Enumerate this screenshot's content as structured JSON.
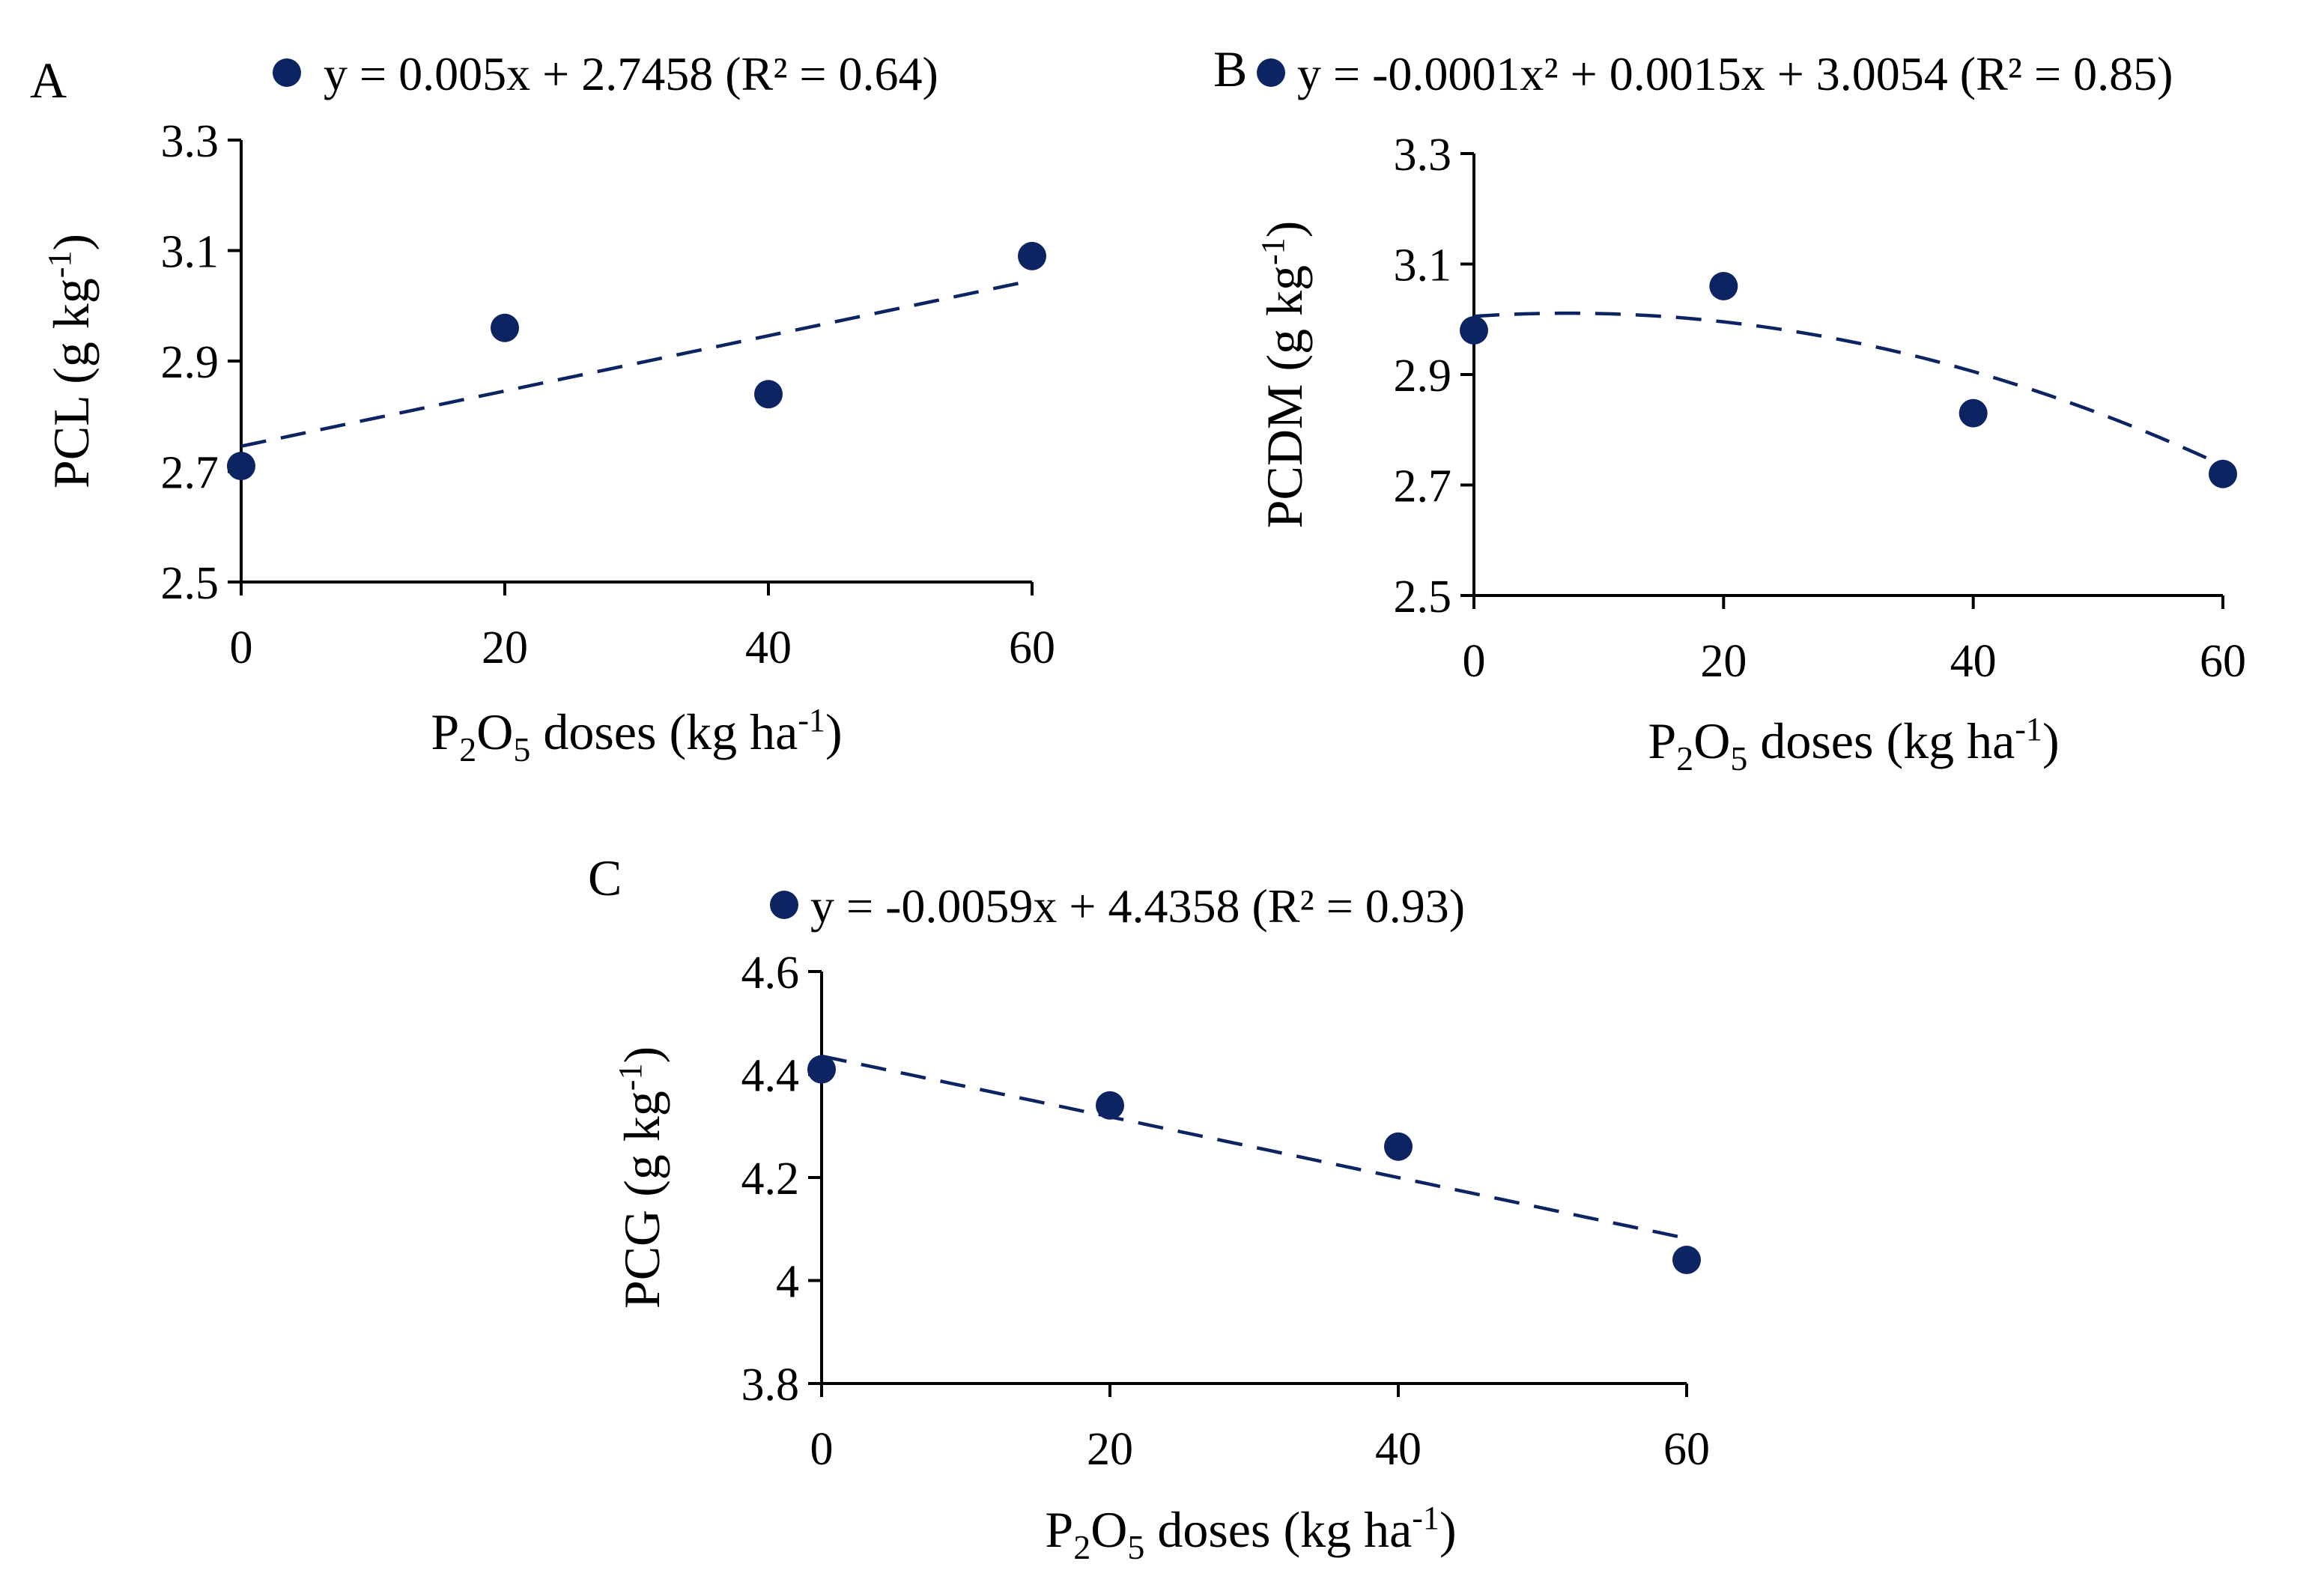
{
  "colors": {
    "marker": "#0d2462",
    "axis": "#000000",
    "background": "#ffffff"
  },
  "chart_data": [
    {
      "type": "scatter",
      "panel": "A",
      "legend": "y = 0.005x + 2.7458 (R² = 0.64)",
      "ylabel": {
        "main": "PCL (g kg",
        "sup": "-1",
        "end": ")"
      },
      "xlabel": {
        "p": "P",
        "sub2": "2",
        "o": "O",
        "sub5": "5",
        "rest": " doses (kg ha",
        "sup": "-1",
        "end": ")"
      },
      "x": [
        0,
        20,
        40,
        60
      ],
      "y": [
        2.71,
        2.96,
        2.84,
        3.09
      ],
      "xticks": [
        0,
        20,
        40,
        60
      ],
      "xtick_labels": [
        "0",
        "20",
        "40",
        "60"
      ],
      "yticks": [
        2.5,
        2.7,
        2.9,
        3.1,
        3.3
      ],
      "ytick_labels": [
        "2.5",
        "2.7",
        "2.9",
        "3.1",
        "3.3"
      ],
      "xlim": [
        0,
        60
      ],
      "ylim": [
        2.5,
        3.3
      ],
      "fit": {
        "kind": "linear",
        "coefficients": [
          2.7458,
          0.005
        ]
      }
    },
    {
      "type": "scatter",
      "panel": "B",
      "legend": "y = -0.0001x² + 0.0015x + 3.0054 (R² = 0.85)",
      "ylabel": {
        "main": "PCDM (g kg",
        "sup": "-1",
        "end": ")"
      },
      "xlabel": {
        "p": "P",
        "sub2": "2",
        "o": "O",
        "sub5": "5",
        "rest": " doses (kg ha",
        "sup": "-1",
        "end": ")"
      },
      "x": [
        0,
        20,
        40,
        60
      ],
      "y": [
        2.98,
        3.06,
        2.83,
        2.72
      ],
      "xticks": [
        0,
        20,
        40,
        60
      ],
      "xtick_labels": [
        "0",
        "20",
        "40",
        "60"
      ],
      "yticks": [
        2.5,
        2.7,
        2.9,
        3.1,
        3.3
      ],
      "ytick_labels": [
        "2.5",
        "2.7",
        "2.9",
        "3.1",
        "3.3"
      ],
      "xlim": [
        0,
        60
      ],
      "ylim": [
        2.5,
        3.3
      ],
      "fit": {
        "kind": "quadratic",
        "coefficients": [
          3.0054,
          0.0015,
          -0.0001
        ]
      }
    },
    {
      "type": "scatter",
      "panel": "C",
      "legend": "y = -0.0059x + 4.4358 (R² = 0.93)",
      "ylabel": {
        "main": "PCG (g kg",
        "sup": "-1",
        "end": ")"
      },
      "xlabel": {
        "p": "P",
        "sub2": "2",
        "o": "O",
        "sub5": "5",
        "rest": " doses (kg ha",
        "sup": "-1",
        "end": ")"
      },
      "x": [
        0,
        20,
        40,
        60
      ],
      "y": [
        4.41,
        4.34,
        4.26,
        4.04
      ],
      "xticks": [
        0,
        20,
        40,
        60
      ],
      "xtick_labels": [
        "0",
        "20",
        "40",
        "60"
      ],
      "yticks": [
        3.8,
        4.0,
        4.2,
        4.4,
        4.6
      ],
      "ytick_labels": [
        "3.8",
        "4",
        "4.2",
        "4.4",
        "4.6"
      ],
      "xlim": [
        0,
        60
      ],
      "ylim": [
        3.8,
        4.6
      ],
      "fit": {
        "kind": "linear",
        "coefficients": [
          4.4358,
          -0.0059
        ]
      }
    }
  ]
}
